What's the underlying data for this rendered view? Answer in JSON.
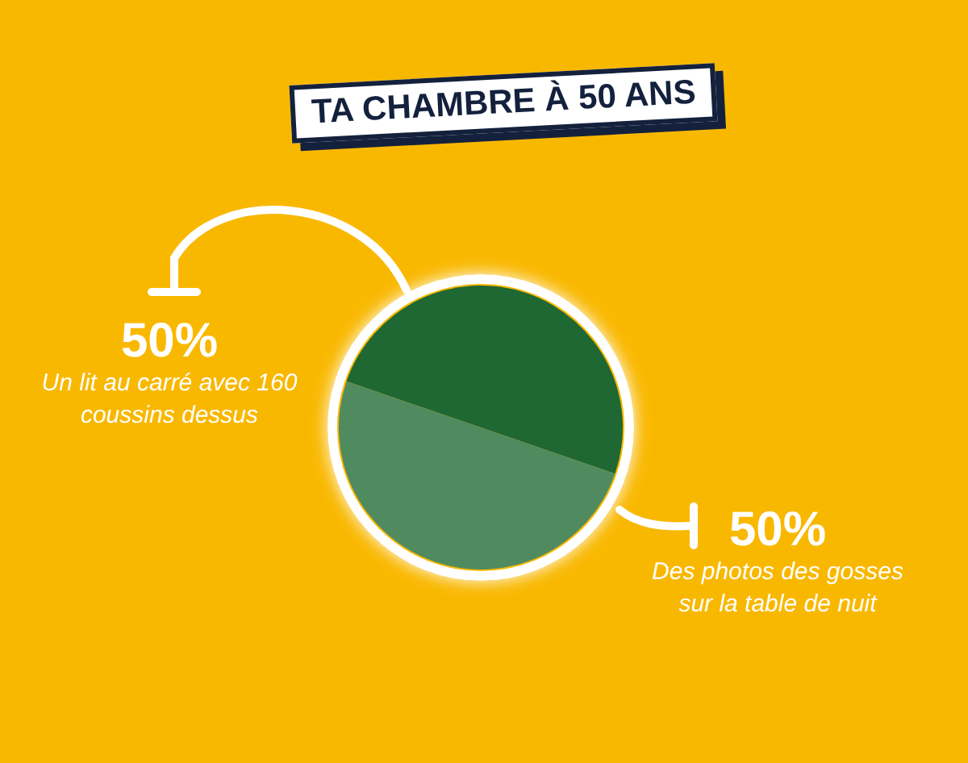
{
  "chart_data": {
    "type": "pie",
    "title": "TA CHAMBRE À 50 ANS",
    "categories": [
      "Un lit au carré avec 160 coussins dessus",
      "Des photos des gosses sur la table de nuit"
    ],
    "values": [
      50,
      50
    ],
    "colors": [
      "#1f6733",
      "#4f8b5f"
    ],
    "value_labels": [
      "50%",
      "50%"
    ]
  }
}
